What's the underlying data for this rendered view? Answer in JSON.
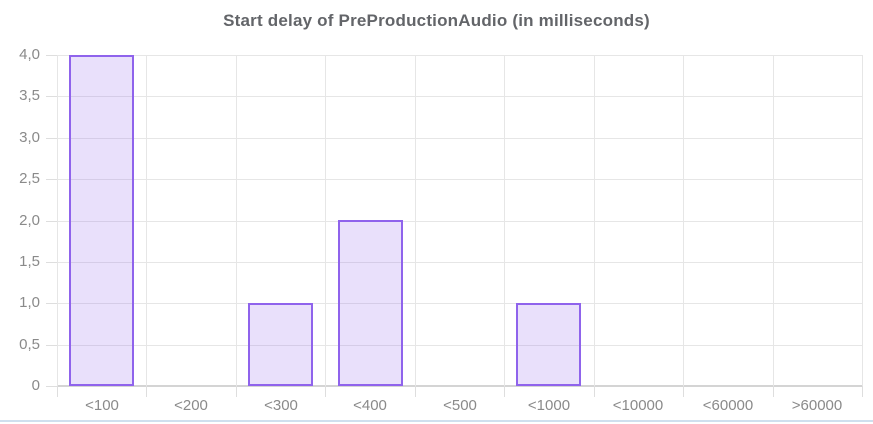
{
  "chart_data": {
    "type": "bar",
    "title": "Start delay of PreProductionAudio (in milliseconds)",
    "categories": [
      "<100",
      "<200",
      "<300",
      "<400",
      "<500",
      "<1000",
      "<10000",
      "<60000",
      ">60000"
    ],
    "values": [
      4,
      0,
      1,
      2,
      0,
      1,
      0,
      0,
      0
    ],
    "xlabel": "",
    "ylabel": "",
    "ylim": [
      0,
      4
    ],
    "y_ticks": [
      {
        "value": 0,
        "label": "0"
      },
      {
        "value": 0.5,
        "label": "0,5"
      },
      {
        "value": 1,
        "label": "1,0"
      },
      {
        "value": 1.5,
        "label": "1,5"
      },
      {
        "value": 2,
        "label": "2,0"
      },
      {
        "value": 2.5,
        "label": "2,5"
      },
      {
        "value": 3,
        "label": "3,0"
      },
      {
        "value": 3.5,
        "label": "3,5"
      },
      {
        "value": 4,
        "label": "4,0"
      }
    ],
    "grid": true,
    "legend": "none",
    "decimal_separator": ",",
    "colors": {
      "bar_fill": "rgba(143,99,236,0.2)",
      "bar_border": "#8f63ec",
      "grid": "#e6e6e6",
      "axis": "#d4d4d4",
      "tick": "#dedede",
      "label": "#8a8a8a",
      "title": "#636569",
      "panel_border": "#cfdfee"
    }
  }
}
